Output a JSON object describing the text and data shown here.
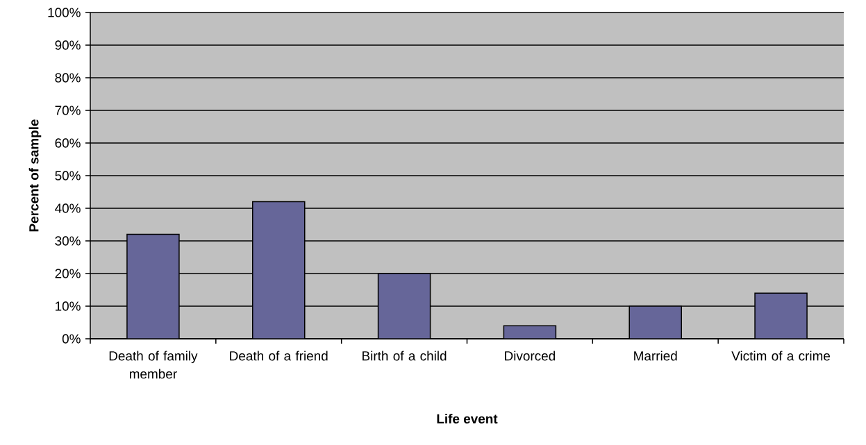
{
  "chart_data": {
    "type": "bar",
    "xlabel": "Life event",
    "ylabel": "Percent of sample",
    "categories": [
      "Death of family member",
      "Death of a friend",
      "Birth of a child",
      "Divorced",
      "Married",
      "Victim of a crime"
    ],
    "values": [
      32,
      42,
      20,
      4,
      10,
      14
    ],
    "color": "#666699",
    "ylim": [
      0,
      100
    ],
    "yticks": [
      {
        "value": 0,
        "label": "0%"
      },
      {
        "value": 10,
        "label": "10%"
      },
      {
        "value": 20,
        "label": "20%"
      },
      {
        "value": 30,
        "label": "30%"
      },
      {
        "value": 40,
        "label": "40%"
      },
      {
        "value": 50,
        "label": "50%"
      },
      {
        "value": 60,
        "label": "60%"
      },
      {
        "value": 70,
        "label": "70%"
      },
      {
        "value": 80,
        "label": "80%"
      },
      {
        "value": 90,
        "label": "90%"
      },
      {
        "value": 100,
        "label": "100%"
      }
    ],
    "grid": "y"
  }
}
